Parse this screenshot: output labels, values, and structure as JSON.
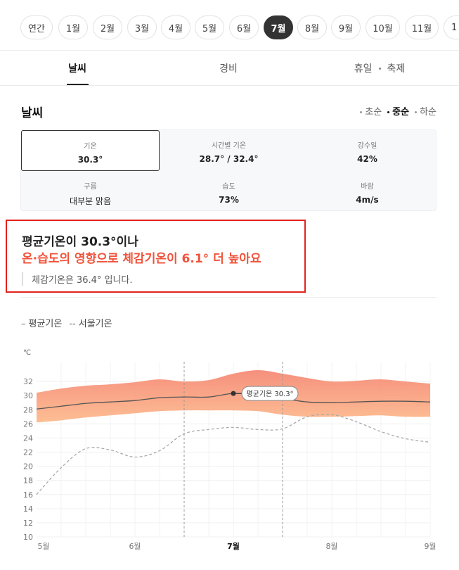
{
  "months": [
    "연간",
    "1월",
    "2월",
    "3월",
    "4월",
    "5월",
    "6월",
    "7월",
    "8월",
    "9월",
    "10월",
    "11월",
    "1"
  ],
  "selected_month": "7월",
  "tabs": {
    "weather": "날씨",
    "cost": "경비",
    "holiday": "휴일",
    "festival": "축제"
  },
  "section_title": "날씨",
  "periods": [
    "초순",
    "중순",
    "하순"
  ],
  "selected_period": "중순",
  "stats": {
    "temp": {
      "label": "기온",
      "value": "30.3°"
    },
    "hourly": {
      "label": "시간별 기온",
      "value": "28.7° / 32.4°"
    },
    "rain": {
      "label": "강수일",
      "value": "42%"
    },
    "cloud": {
      "label": "구름",
      "value": "대부분 맑음"
    },
    "humidity": {
      "label": "습도",
      "value": "73%"
    },
    "wind": {
      "label": "바람",
      "value": "4m/s"
    }
  },
  "callout": {
    "line1": "평균기온이 30.3°이나",
    "line2": "온·습도의 영향으로 체감기온이 6.1° 더 높아요",
    "note": "체감기온은 36.4° 입니다."
  },
  "legend": {
    "avg": "평균기온",
    "seoul": "서울기온",
    "avg_symbol": "–",
    "seoul_symbol": "--"
  },
  "colors": {
    "accent_red": "#f0533b",
    "band_top": "#f58a77",
    "band_bottom": "#fdbb8e",
    "avg_line": "#555555",
    "seoul_line": "#aaaaaa"
  },
  "chart_data": {
    "type": "area",
    "unit": "℃",
    "ylim": [
      10,
      34
    ],
    "yticks": [
      10,
      12,
      14,
      16,
      18,
      20,
      22,
      24,
      26,
      28,
      30,
      32
    ],
    "x_labels": [
      "5월",
      "6월",
      "7월",
      "8월",
      "9월"
    ],
    "highlight_x_label": "7월",
    "x": [
      5.0,
      5.25,
      5.5,
      5.75,
      6.0,
      6.25,
      6.5,
      6.75,
      7.0,
      7.25,
      7.5,
      7.75,
      8.0,
      8.25,
      8.5,
      8.75,
      9.0
    ],
    "series": [
      {
        "name": "평균기온",
        "values": [
          28.1,
          28.5,
          28.9,
          29.1,
          29.3,
          29.7,
          29.8,
          29.8,
          30.3,
          30.1,
          29.6,
          29.1,
          29.0,
          29.1,
          29.2,
          29.2,
          29.1
        ]
      },
      {
        "name": "upper",
        "values": [
          30.4,
          31.0,
          31.4,
          31.6,
          31.9,
          32.3,
          32.0,
          32.2,
          33.1,
          33.6,
          33.1,
          32.5,
          32.0,
          32.1,
          32.3,
          32.0,
          31.7
        ]
      },
      {
        "name": "lower",
        "values": [
          26.2,
          26.5,
          26.9,
          27.2,
          27.5,
          27.8,
          27.9,
          27.9,
          27.9,
          27.8,
          27.3,
          27.0,
          27.0,
          27.1,
          27.2,
          27.0,
          27.0
        ]
      },
      {
        "name": "서울기온",
        "values": [
          16.0,
          19.8,
          22.5,
          22.3,
          21.3,
          22.2,
          24.6,
          25.2,
          25.5,
          25.2,
          25.3,
          27.0,
          27.3,
          26.3,
          24.9,
          23.9,
          23.4
        ]
      }
    ],
    "markers": [
      {
        "x": 7.0,
        "label": "평균기온 30.3°"
      }
    ],
    "vlines": [
      6.5,
      7.5
    ]
  }
}
